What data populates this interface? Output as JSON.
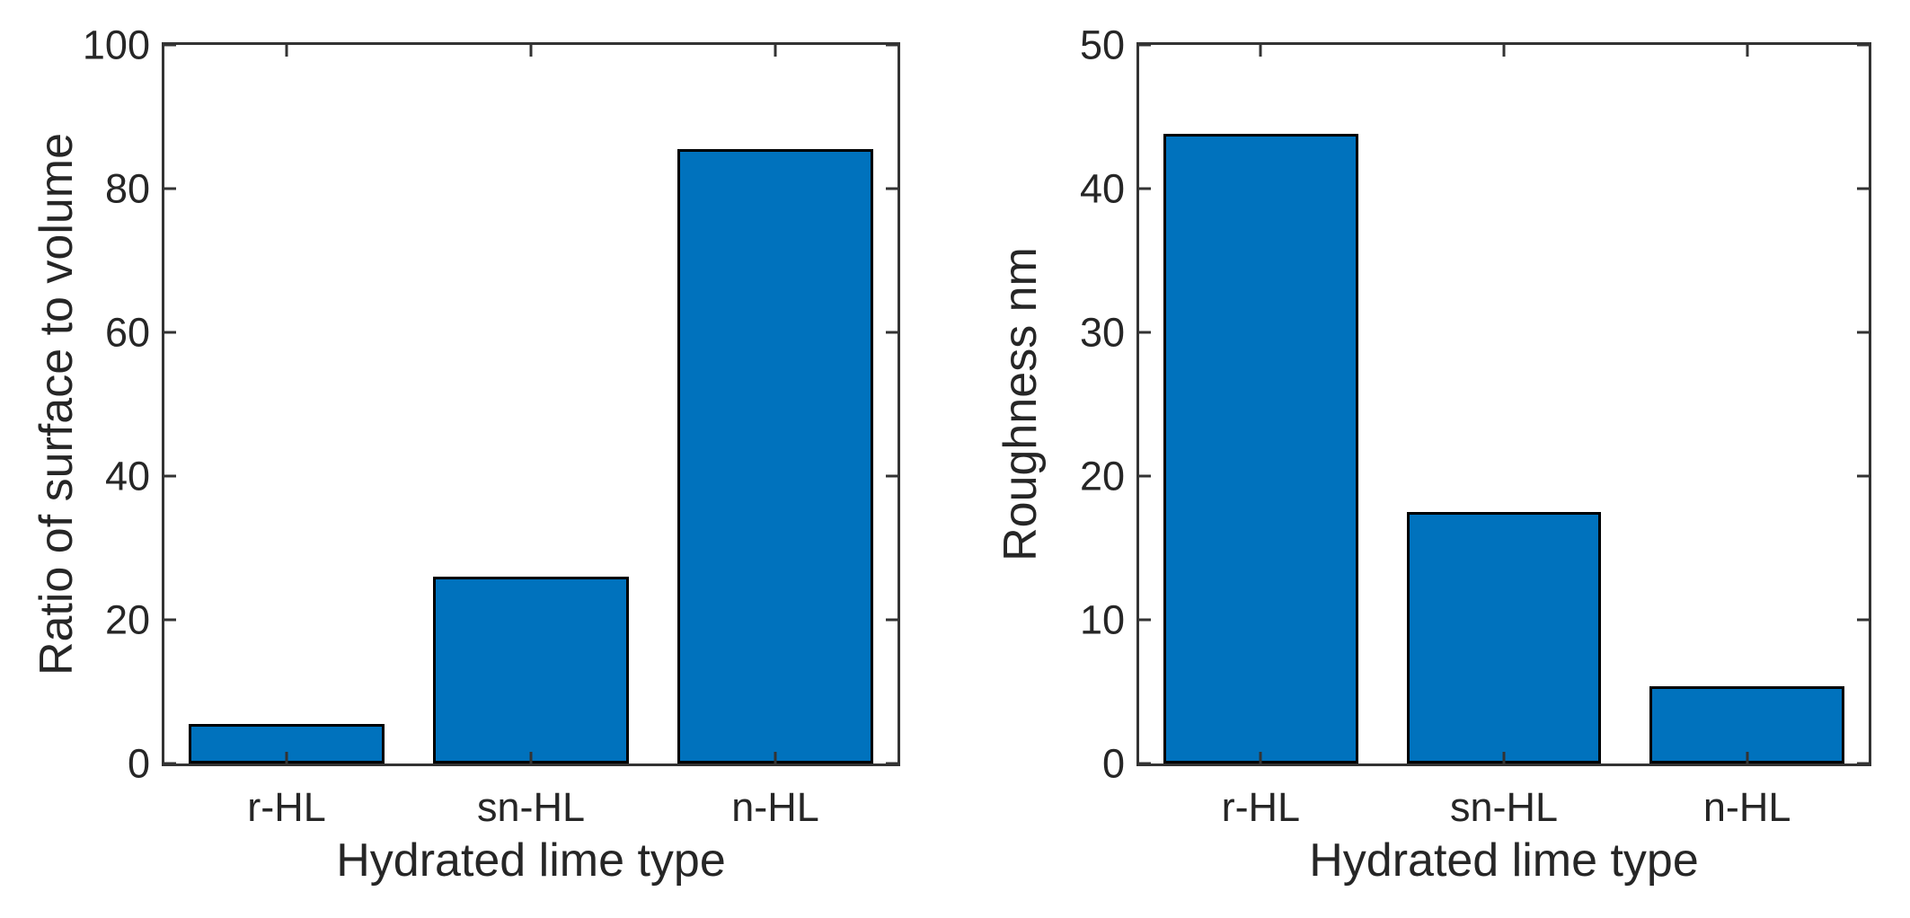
{
  "figure": {
    "background": "#ffffff",
    "text_color": "#262626",
    "axis_color": "#333333"
  },
  "chart_data": [
    {
      "type": "bar",
      "categories": [
        "r-HL",
        "sn-HL",
        "n-HL"
      ],
      "values": [
        5.5,
        26,
        85.5
      ],
      "title": "",
      "xlabel": "Hydrated lime type",
      "ylabel": "Ratio of surface to volume",
      "ylim": [
        0,
        100
      ],
      "yticks": [
        0,
        20,
        40,
        60,
        80,
        100
      ],
      "bar_color": "#0072BD",
      "bar_edge_color": "#000000",
      "bar_width_fraction": 0.8,
      "grid": false,
      "legend": null,
      "box": true,
      "tick_direction": "in"
    },
    {
      "type": "bar",
      "categories": [
        "r-HL",
        "sn-HL",
        "n-HL"
      ],
      "values": [
        43.8,
        17.5,
        5.4
      ],
      "title": "",
      "xlabel": "Hydrated lime type",
      "ylabel": "Roughness nm",
      "ylim": [
        0,
        50
      ],
      "yticks": [
        0,
        10,
        20,
        30,
        40,
        50
      ],
      "bar_color": "#0072BD",
      "bar_edge_color": "#000000",
      "bar_width_fraction": 0.8,
      "grid": false,
      "legend": null,
      "box": true,
      "tick_direction": "in"
    }
  ]
}
